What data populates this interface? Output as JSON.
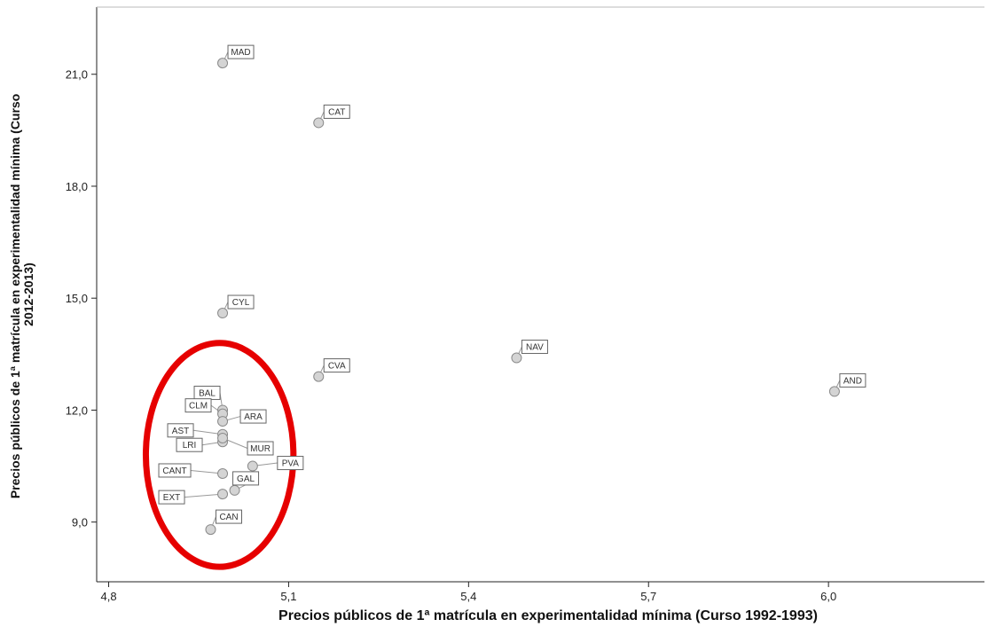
{
  "chart_data": {
    "type": "scatter",
    "xlabel": "Precios públicos de 1ª matrícula en experimentalidad mínima (Curso 1992-1993)",
    "ylabel": "Precios públicos de 1ª matrícula en experimentalidad mínima (Curso 2012-2013)",
    "xlim": [
      4.78,
      6.26
    ],
    "ylim": [
      7.4,
      22.8
    ],
    "x_ticks": [
      "4,8",
      "5,1",
      "5,4",
      "5,7",
      "6,0"
    ],
    "y_ticks": [
      "9,0",
      "12,0",
      "15,0",
      "18,0",
      "21,0"
    ],
    "grid": false,
    "points": [
      {
        "label": "MAD",
        "x": 4.99,
        "y": 21.3
      },
      {
        "label": "CAT",
        "x": 5.15,
        "y": 19.7
      },
      {
        "label": "CYL",
        "x": 4.99,
        "y": 14.6
      },
      {
        "label": "NAV",
        "x": 5.48,
        "y": 13.4
      },
      {
        "label": "CVA",
        "x": 5.15,
        "y": 12.9
      },
      {
        "label": "AND",
        "x": 6.01,
        "y": 12.5
      },
      {
        "label": "BAL",
        "x": 4.99,
        "y": 12.0
      },
      {
        "label": "CLM",
        "x": 4.99,
        "y": 11.9
      },
      {
        "label": "ARA",
        "x": 4.99,
        "y": 11.7
      },
      {
        "label": "AST",
        "x": 4.99,
        "y": 11.35
      },
      {
        "label": "LRI",
        "x": 4.99,
        "y": 11.15
      },
      {
        "label": "MUR",
        "x": 4.99,
        "y": 11.25
      },
      {
        "label": "PVA",
        "x": 5.04,
        "y": 10.5
      },
      {
        "label": "CANT",
        "x": 4.99,
        "y": 10.3
      },
      {
        "label": "GAL",
        "x": 5.01,
        "y": 9.85
      },
      {
        "label": "EXT",
        "x": 4.99,
        "y": 9.75
      },
      {
        "label": "CAN",
        "x": 4.97,
        "y": 8.8
      }
    ],
    "annotation": {
      "shape": "ellipse",
      "color": "#e60000",
      "center": [
        4.985,
        10.8
      ],
      "rx_data": 0.123,
      "ry_data": 3.0
    }
  }
}
